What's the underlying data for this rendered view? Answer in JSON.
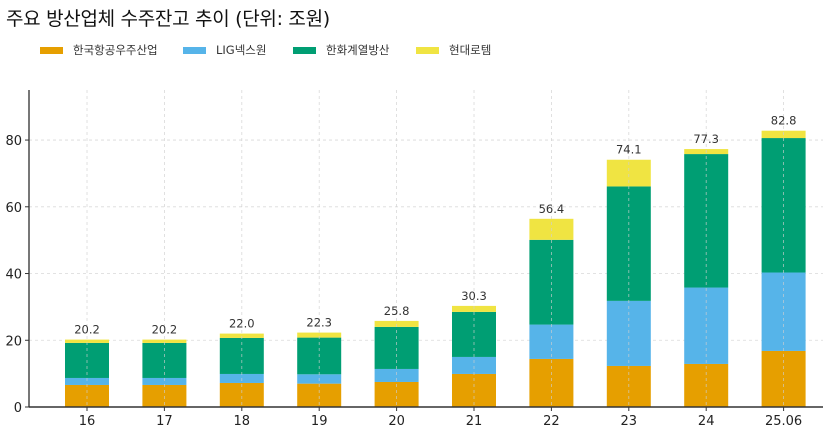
{
  "chart_data": {
    "type": "bar",
    "stacked": true,
    "title": "주요 방산업체 수주잔고 추이 (단위: 조원)",
    "xlabel": "",
    "ylabel": "",
    "ylim": [
      0,
      95
    ],
    "yticks": [
      0,
      20,
      40,
      60,
      80
    ],
    "grid": true,
    "legend_position": "top-left",
    "categories": [
      "16",
      "17",
      "18",
      "19",
      "20",
      "21",
      "22",
      "23",
      "24",
      "25.06"
    ],
    "series": [
      {
        "name": "한국항공우주산업",
        "color": "#E69F00",
        "values": [
          6.6,
          6.6,
          7.2,
          7.0,
          7.5,
          9.9,
          14.4,
          12.3,
          12.9,
          16.8
        ]
      },
      {
        "name": "LIG넥스원",
        "color": "#56B4E9",
        "values": [
          2.1,
          2.1,
          2.7,
          2.8,
          3.9,
          5.1,
          10.3,
          19.5,
          22.9,
          23.5
        ]
      },
      {
        "name": "한화계열방산",
        "color": "#009E73",
        "values": [
          10.5,
          10.5,
          10.8,
          11.0,
          12.6,
          13.5,
          25.4,
          34.3,
          40.0,
          40.3
        ]
      },
      {
        "name": "현대로템",
        "color": "#F0E442",
        "values": [
          1.0,
          1.0,
          1.3,
          1.5,
          1.8,
          1.8,
          6.3,
          8.0,
          1.5,
          2.2
        ]
      }
    ],
    "totals": [
      "20.2",
      "20.2",
      "22.0",
      "22.3",
      "25.8",
      "30.3",
      "56.4",
      "74.1",
      "77.3",
      "82.8"
    ],
    "ytick_labels": [
      "0",
      "20",
      "40",
      "60",
      "80"
    ]
  }
}
